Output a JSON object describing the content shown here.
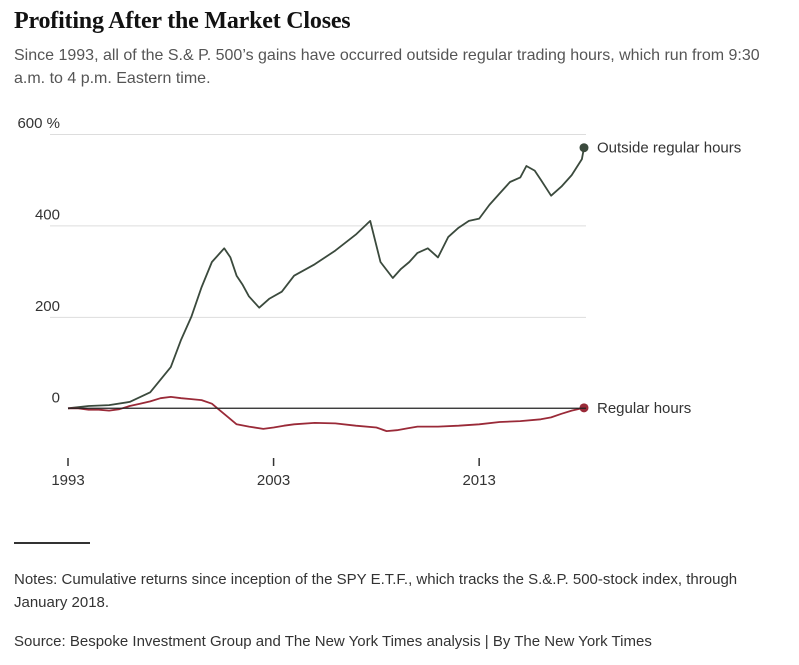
{
  "header": {
    "title": "Profiting After the Market Closes",
    "subtitle": "Since 1993, all of the S.& P. 500’s gains have occurred outside regular trading hours, which run from 9:30 a.m. to 4 p.m. Eastern time."
  },
  "footer": {
    "notes": "Notes: Cumulative returns since inception of the SPY E.T.F., which tracks the S.&.P. 500-stock index, through January 2018.",
    "source": "Source: Bespoke Investment Group and The New York Times analysis | By The New York Times"
  },
  "colors": {
    "outside": "#3b4a3d",
    "regular": "#9a2a38",
    "grid": "#dddddd",
    "zero": "#222222"
  },
  "chart_data": {
    "type": "line",
    "title": "Profiting After the Market Closes",
    "xlabel": "",
    "ylabel": "",
    "unit": "%",
    "xlim": [
      1993,
      2018.1
    ],
    "ylim": [
      -100,
      600
    ],
    "y_ticks": [
      {
        "value": 600,
        "label": "600 %"
      },
      {
        "value": 400,
        "label": "400"
      },
      {
        "value": 200,
        "label": "200"
      },
      {
        "value": 0,
        "label": "0"
      }
    ],
    "x_ticks": [
      {
        "value": 1993,
        "label": "1993"
      },
      {
        "value": 2003,
        "label": "2003"
      },
      {
        "value": 2013,
        "label": "2013"
      }
    ],
    "grid": true,
    "series": [
      {
        "name": "Outside regular hours",
        "x": [
          1993.0,
          1994.0,
          1995.0,
          1996.0,
          1997.0,
          1998.0,
          1998.5,
          1999.0,
          1999.5,
          2000.0,
          2000.4,
          2000.6,
          2000.9,
          2001.2,
          2001.5,
          2001.8,
          2002.3,
          2002.8,
          2003.4,
          2004.0,
          2005.0,
          2006.0,
          2007.0,
          2007.7,
          2008.2,
          2008.8,
          2009.2,
          2009.6,
          2010.0,
          2010.5,
          2011.0,
          2011.5,
          2012.0,
          2012.5,
          2013.0,
          2013.5,
          2014.0,
          2014.5,
          2015.0,
          2015.3,
          2015.7,
          2016.0,
          2016.5,
          2017.0,
          2017.5,
          2018.0,
          2018.1
        ],
        "values": [
          0,
          5,
          7,
          14,
          35,
          90,
          150,
          200,
          265,
          320,
          340,
          350,
          330,
          290,
          270,
          245,
          220,
          240,
          255,
          290,
          315,
          345,
          380,
          410,
          320,
          285,
          305,
          320,
          340,
          350,
          330,
          375,
          395,
          410,
          415,
          445,
          470,
          495,
          505,
          530,
          520,
          500,
          465,
          485,
          510,
          545,
          570
        ]
      },
      {
        "name": "Regular hours",
        "x": [
          1993.0,
          1993.5,
          1994.0,
          1994.5,
          1995.0,
          1995.5,
          1996.0,
          1996.5,
          1997.0,
          1997.5,
          1998.0,
          1998.5,
          1999.0,
          1999.5,
          2000.0,
          2000.4,
          2000.8,
          2001.2,
          2001.8,
          2002.5,
          2003.0,
          2003.5,
          2004.0,
          2005.0,
          2006.0,
          2007.0,
          2008.0,
          2008.5,
          2009.0,
          2009.5,
          2010.0,
          2011.0,
          2012.0,
          2013.0,
          2014.0,
          2015.0,
          2016.0,
          2016.5,
          2017.0,
          2017.5,
          2018.0,
          2018.1
        ],
        "values": [
          0,
          0,
          -3,
          -3,
          -5,
          -2,
          5,
          10,
          15,
          22,
          25,
          22,
          20,
          18,
          10,
          -5,
          -20,
          -35,
          -40,
          -45,
          -42,
          -38,
          -35,
          -32,
          -33,
          -38,
          -42,
          -50,
          -48,
          -44,
          -40,
          -40,
          -38,
          -35,
          -30,
          -28,
          -24,
          -20,
          -12,
          -5,
          0,
          1
        ]
      }
    ]
  }
}
